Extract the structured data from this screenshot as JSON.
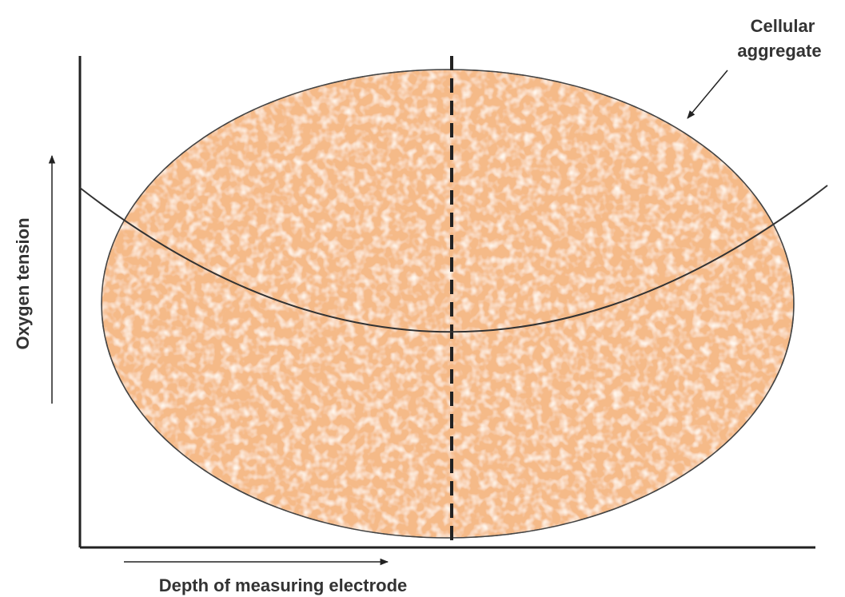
{
  "labels": {
    "aggregate": [
      "Cellular",
      "aggregate"
    ],
    "y_axis": "Oxygen tension",
    "x_axis": "Depth of measuring electrode"
  }
}
